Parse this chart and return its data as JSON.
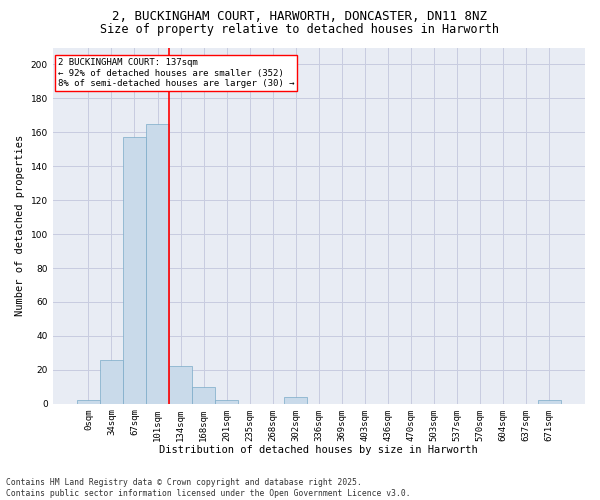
{
  "title_line1": "2, BUCKINGHAM COURT, HARWORTH, DONCASTER, DN11 8NZ",
  "title_line2": "Size of property relative to detached houses in Harworth",
  "xlabel": "Distribution of detached houses by size in Harworth",
  "ylabel": "Number of detached properties",
  "bar_color": "#c9daea",
  "bar_edge_color": "#7aaac8",
  "categories": [
    "0sqm",
    "34sqm",
    "67sqm",
    "101sqm",
    "134sqm",
    "168sqm",
    "201sqm",
    "235sqm",
    "268sqm",
    "302sqm",
    "336sqm",
    "369sqm",
    "403sqm",
    "436sqm",
    "470sqm",
    "503sqm",
    "537sqm",
    "570sqm",
    "604sqm",
    "637sqm",
    "671sqm"
  ],
  "values": [
    2,
    26,
    157,
    165,
    22,
    10,
    2,
    0,
    0,
    4,
    0,
    0,
    0,
    0,
    0,
    0,
    0,
    0,
    0,
    0,
    2
  ],
  "red_line_x": 3.5,
  "annotation_text": "2 BUCKINGHAM COURT: 137sqm\n← 92% of detached houses are smaller (352)\n8% of semi-detached houses are larger (30) →",
  "annotation_box_color": "white",
  "annotation_box_edge_color": "red",
  "ylim": [
    0,
    210
  ],
  "yticks": [
    0,
    20,
    40,
    60,
    80,
    100,
    120,
    140,
    160,
    180,
    200
  ],
  "grid_color": "#c8cce0",
  "bg_color": "#e8ecf4",
  "footer_line1": "Contains HM Land Registry data © Crown copyright and database right 2025.",
  "footer_line2": "Contains public sector information licensed under the Open Government Licence v3.0.",
  "title_fontsize": 9,
  "title2_fontsize": 8.5,
  "label_fontsize": 7.5,
  "tick_fontsize": 6.5,
  "footer_fontsize": 5.8,
  "annot_fontsize": 6.5
}
